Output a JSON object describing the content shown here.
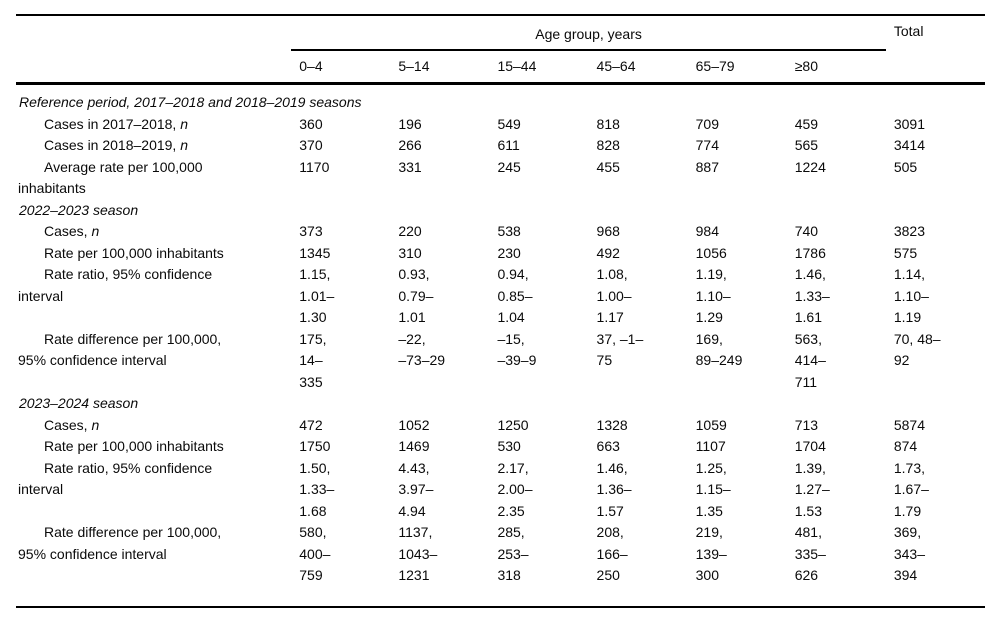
{
  "table": {
    "header": {
      "age_group_label": "Age group, years",
      "total_label": "Total",
      "age_columns": [
        "0–4",
        "5–14",
        "15–44",
        "45–64",
        "65–79",
        "≥80"
      ]
    },
    "sections": [
      {
        "title": "Reference period, 2017–2018 and 2018–2019 seasons",
        "rows": [
          {
            "label": "Cases in 2017–2018, ",
            "label_italic_suffix": "n",
            "values": [
              "360",
              "196",
              "549",
              "818",
              "709",
              "459",
              "3091"
            ]
          },
          {
            "label": "Cases in 2018–2019, ",
            "label_italic_suffix": "n",
            "values": [
              "370",
              "266",
              "611",
              "828",
              "774",
              "565",
              "3414"
            ]
          },
          {
            "label": "Average rate per 100,000\ninhabitants",
            "values": [
              "1170",
              "331",
              "245",
              "455",
              "887",
              "1224",
              "505"
            ]
          }
        ]
      },
      {
        "title": "2022–2023 season",
        "rows": [
          {
            "label": "Cases, ",
            "label_italic_suffix": "n",
            "values": [
              "373",
              "220",
              "538",
              "968",
              "984",
              "740",
              "3823"
            ]
          },
          {
            "label": "Rate per 100,000 inhabitants",
            "values": [
              "1345",
              "310",
              "230",
              "492",
              "1056",
              "1786",
              "575"
            ]
          },
          {
            "label": "Rate ratio, 95% confidence\ninterval",
            "values": [
              "1.15,\n1.01–\n1.30",
              "0.93,\n0.79–\n1.01",
              "0.94,\n0.85–\n1.04",
              "1.08,\n1.00–\n1.17",
              "1.19,\n1.10–\n1.29",
              "1.46,\n1.33–\n1.61",
              "1.14,\n1.10–\n1.19"
            ]
          },
          {
            "label": "Rate difference per 100,000,\n95% confidence interval",
            "values": [
              "175,\n14–\n335",
              "–22,\n–73–29",
              "–15,\n–39–9",
              "37, –1–\n75",
              "169,\n89–249",
              "563,\n414–\n711",
              "70, 48–\n92"
            ]
          }
        ]
      },
      {
        "title": "2023–2024 season",
        "rows": [
          {
            "label": "Cases, ",
            "label_italic_suffix": "n",
            "values": [
              "472",
              "1052",
              "1250",
              "1328",
              "1059",
              "713",
              "5874"
            ]
          },
          {
            "label": "Rate per 100,000 inhabitants",
            "values": [
              "1750",
              "1469",
              "530",
              "663",
              "1107",
              "1704",
              "874"
            ]
          },
          {
            "label": "Rate ratio, 95% confidence\ninterval",
            "values": [
              "1.50,\n1.33–\n1.68",
              "4.43,\n3.97–\n4.94",
              "2.17,\n2.00–\n2.35",
              "1.46,\n1.36–\n1.57",
              "1.25,\n1.15–\n1.35",
              "1.39,\n1.27–\n1.53",
              "1.73,\n1.67–\n1.79"
            ]
          },
          {
            "label": "Rate difference per 100,000,\n95% confidence interval",
            "values": [
              "580,\n400–\n759",
              "1137,\n1043–\n1231",
              "285,\n253–\n318",
              "208,\n166–\n250",
              "219,\n139–\n300",
              "481,\n335–\n626",
              "369,\n343–\n394"
            ]
          }
        ]
      }
    ]
  }
}
